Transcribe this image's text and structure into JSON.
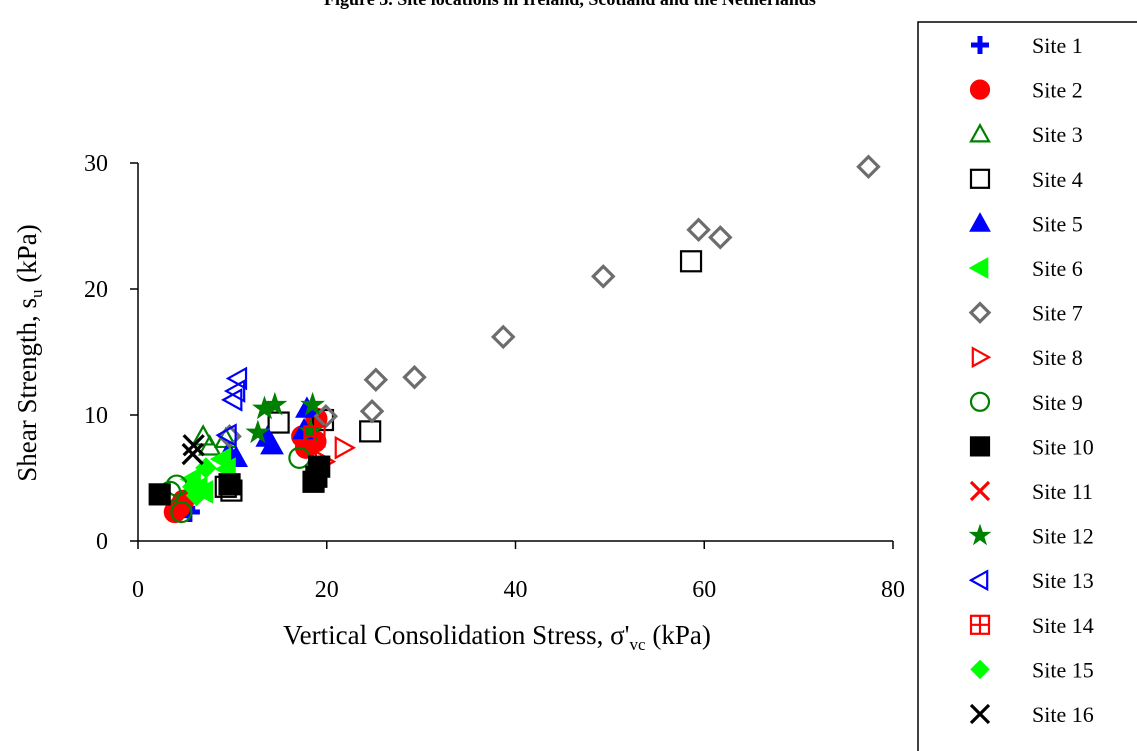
{
  "chart_data": {
    "type": "scatter",
    "title": "Figure 3. Site locations in Ireland, Scotland and the Netherlands",
    "xlabel": "Vertical Consolidation Stress, σ'",
    "xlabel_sub": "vc",
    "xlabel_unit": " (kPa)",
    "ylabel": "Shear Strength, s",
    "ylabel_sub": "u",
    "ylabel_unit": " (kPa)",
    "xlim": [
      0,
      80
    ],
    "ylim": [
      0,
      30
    ],
    "xticks": [
      "0",
      "20",
      "40",
      "60",
      "80"
    ],
    "yticks": [
      "0",
      "10",
      "20",
      "30"
    ],
    "grid": false,
    "legend_position": "right",
    "series": [
      {
        "name": "Site 1",
        "marker": "plus",
        "color": "#0000ff",
        "filled": true,
        "points": [
          [
            5.0,
            2.6
          ],
          [
            5.5,
            2.3
          ]
        ]
      },
      {
        "name": "Site 2",
        "marker": "circle",
        "color": "#ff0000",
        "filled": true,
        "points": [
          [
            3.9,
            2.3
          ],
          [
            4.4,
            2.7
          ],
          [
            4.8,
            3.2
          ],
          [
            17.4,
            8.3
          ],
          [
            17.8,
            7.4
          ],
          [
            18.8,
            7.9
          ],
          [
            18.9,
            9.7
          ]
        ]
      },
      {
        "name": "Site 3",
        "marker": "triangle-up",
        "color": "#008000",
        "filled": false,
        "points": [
          [
            6.9,
            8.3
          ],
          [
            7.6,
            7.5
          ],
          [
            9.3,
            8.1
          ]
        ]
      },
      {
        "name": "Site 4",
        "marker": "square",
        "color": "#000000",
        "filled": false,
        "points": [
          [
            9.3,
            4.3
          ],
          [
            9.9,
            4.0
          ],
          [
            14.9,
            9.4
          ],
          [
            19.6,
            9.6
          ],
          [
            24.6,
            8.7
          ],
          [
            58.6,
            22.2
          ]
        ]
      },
      {
        "name": "Site 5",
        "marker": "triangle-up",
        "color": "#0000ff",
        "filled": true,
        "points": [
          [
            9.6,
            7.0
          ],
          [
            10.4,
            6.6
          ],
          [
            13.7,
            8.2
          ],
          [
            14.2,
            7.6
          ],
          [
            17.6,
            8.8
          ],
          [
            17.9,
            10.5
          ]
        ]
      },
      {
        "name": "Site 6",
        "marker": "triangle-left",
        "color": "#00ff00",
        "filled": true,
        "points": [
          [
            5.7,
            4.9
          ],
          [
            6.4,
            4.2
          ],
          [
            7.0,
            3.9
          ],
          [
            8.9,
            6.5
          ],
          [
            9.4,
            5.7
          ]
        ]
      },
      {
        "name": "Site 7",
        "marker": "diamond",
        "color": "#6d6d6d",
        "filled": false,
        "points": [
          [
            9.7,
            8.3
          ],
          [
            19.9,
            9.9
          ],
          [
            24.8,
            10.3
          ],
          [
            25.2,
            12.8
          ],
          [
            29.3,
            13.0
          ],
          [
            38.7,
            16.2
          ],
          [
            49.3,
            21.0
          ],
          [
            59.4,
            24.7
          ],
          [
            61.7,
            24.1
          ],
          [
            77.4,
            29.7
          ]
        ]
      },
      {
        "name": "Site 8",
        "marker": "triangle-right",
        "color": "#ff0000",
        "filled": false,
        "points": [
          [
            19.7,
            6.3
          ],
          [
            21.8,
            7.4
          ]
        ]
      },
      {
        "name": "Site 9",
        "marker": "circle",
        "color": "#008000",
        "filled": false,
        "points": [
          [
            3.4,
            3.9
          ],
          [
            4.1,
            4.4
          ],
          [
            4.6,
            2.3
          ],
          [
            17.1,
            6.6
          ]
        ]
      },
      {
        "name": "Site 10",
        "marker": "square",
        "color": "#000000",
        "filled": true,
        "points": [
          [
            2.3,
            3.7
          ],
          [
            9.7,
            4.5
          ],
          [
            18.6,
            4.7
          ],
          [
            18.9,
            5.1
          ],
          [
            19.2,
            5.9
          ]
        ]
      },
      {
        "name": "Site 11",
        "marker": "x",
        "color": "#ff0000",
        "filled": false,
        "points": []
      },
      {
        "name": "Site 12",
        "marker": "star",
        "color": "#008000",
        "filled": true,
        "points": [
          [
            13.4,
            10.5
          ],
          [
            14.5,
            10.8
          ],
          [
            12.7,
            8.6
          ],
          [
            18.5,
            10.8
          ],
          [
            18.3,
            8.7
          ]
        ]
      },
      {
        "name": "Site 13",
        "marker": "triangle-left",
        "color": "#0000ff",
        "filled": false,
        "points": [
          [
            10.1,
            11.2
          ],
          [
            10.4,
            11.9
          ],
          [
            10.6,
            12.9
          ],
          [
            9.5,
            8.4
          ]
        ]
      },
      {
        "name": "Site 14",
        "marker": "square-cross",
        "color": "#ff0000",
        "filled": false,
        "points": [
          [
            18.7,
            8.3
          ]
        ]
      },
      {
        "name": "Site 15",
        "marker": "diamond",
        "color": "#00ff00",
        "filled": true,
        "points": [
          [
            5.8,
            4.3
          ],
          [
            6.2,
            3.6
          ],
          [
            7.2,
            5.8
          ]
        ]
      },
      {
        "name": "Site 16",
        "marker": "x",
        "color": "#000000",
        "filled": false,
        "points": [
          [
            5.8,
            6.9
          ],
          [
            5.9,
            7.6
          ]
        ]
      }
    ]
  }
}
